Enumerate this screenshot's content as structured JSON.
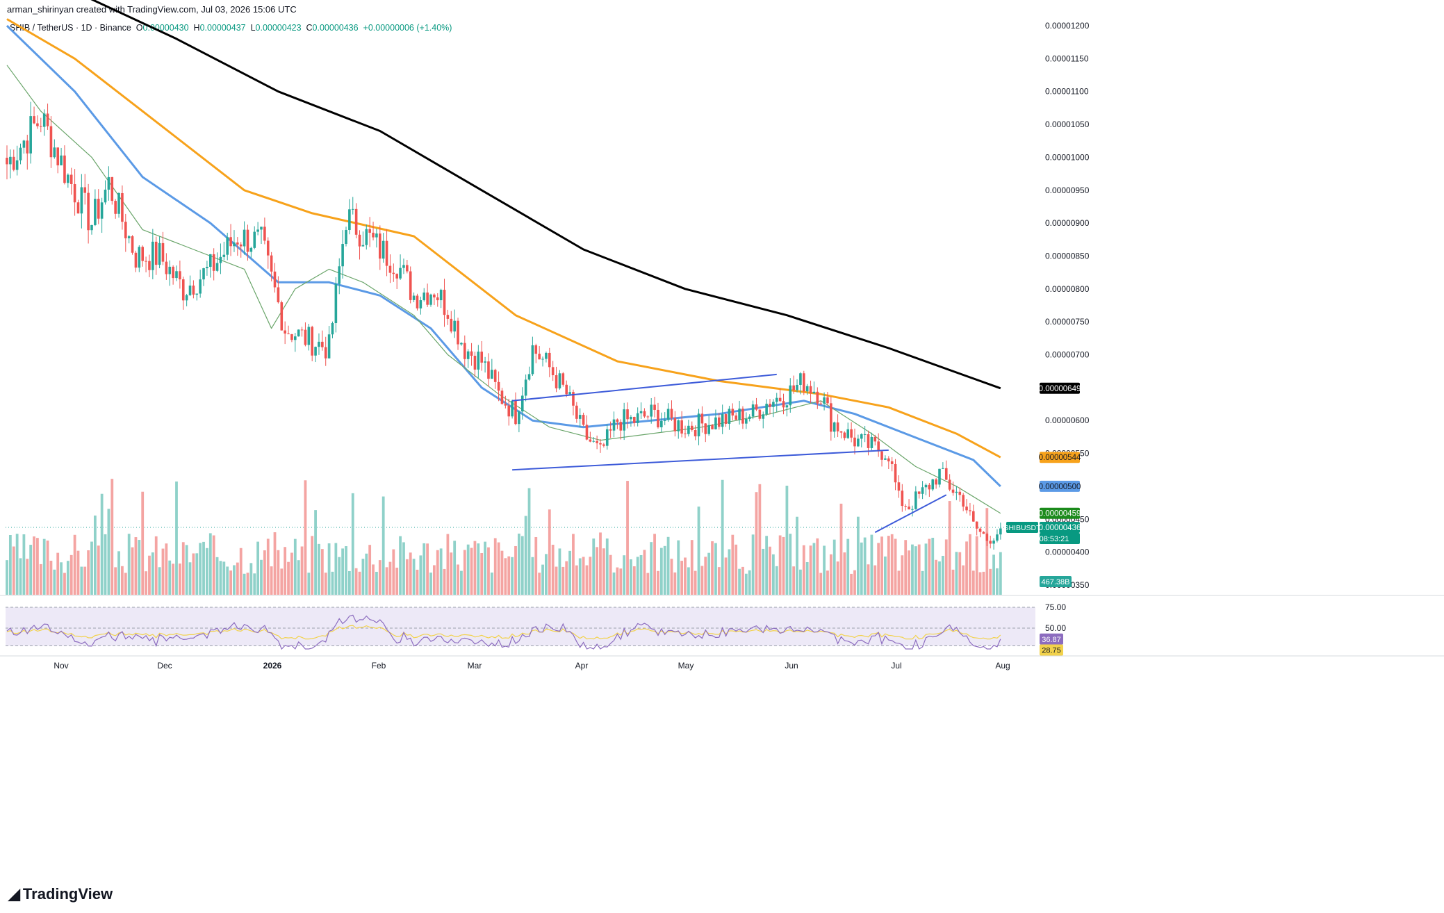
{
  "header": {
    "credit": "arman_shirinyan created with TradingView.com, Jul 03, 2026 15:06 UTC"
  },
  "legend": {
    "symbol": "SHIB / TetherUS · 1D · Binance",
    "o_label": "O",
    "o_value": "0.00000430",
    "h_label": "H",
    "h_value": "0.00000437",
    "l_label": "L",
    "l_value": "0.00000423",
    "c_label": "C",
    "c_value": "0.00000436",
    "change": "+0.00000006 (+1.40%)"
  },
  "brand": {
    "name": "TradingView"
  },
  "colors": {
    "up": "#26a69a",
    "down": "#ef5350",
    "vol_up": "#8fd1c9",
    "vol_down": "#f4a4a2",
    "ma_black": "#000000",
    "ma_orange": "#f7a21b",
    "ma_blue": "#5b9ae6",
    "ma_green": "#6aa56a",
    "trendline": "#3d5bd9",
    "rsi": "#8c6cbf",
    "rsi_ma": "#f2d24b",
    "rsi_band": "#ede9f7"
  },
  "chart_data": {
    "type": "candlestick",
    "symbol": "SHIBUSDT",
    "ylim": [
      3.9e-06,
      1.22e-05
    ],
    "y_ticks": [
      "0.00001200",
      "0.00001150",
      "0.00001100",
      "0.00001050",
      "0.00001000",
      "0.00000950",
      "0.00000900",
      "0.00000850",
      "0.00000800",
      "0.00000750",
      "0.00000700",
      "0.00000600",
      "0.00000550",
      "0.00000450",
      "0.00000400",
      "0.00000350"
    ],
    "x_ticks": [
      "Nov",
      "Dec",
      "2026",
      "Feb",
      "Mar",
      "Apr",
      "May",
      "Jun",
      "Jul",
      "Aug"
    ],
    "last_close": 4.36e-06,
    "price_tags": [
      {
        "label": "0.00000649",
        "value": 6.49e-06,
        "color": "#000000",
        "text_color": "#ffffff"
      },
      {
        "label": "0.00000544",
        "value": 5.44e-06,
        "color": "#f7a21b",
        "text_color": "#131722"
      },
      {
        "label": "0.00000500",
        "value": 5e-06,
        "color": "#5b9ae6",
        "text_color": "#131722"
      },
      {
        "label": "0.00000459",
        "value": 4.59e-06,
        "color": "#1b8a1b",
        "text_color": "#ffffff"
      },
      {
        "label": "0.00000436",
        "value": 4.36e-06,
        "color": "#089981",
        "text_color": "#ffffff"
      }
    ],
    "symbol_tag": "SHIBUSDT",
    "countdown": "08:53:21",
    "volume_tag": "467.38B",
    "keypoints": [
      [
        0,
        9.9e-06
      ],
      [
        10,
        1.06e-05
      ],
      [
        18,
        9.7e-06
      ],
      [
        25,
        9e-06
      ],
      [
        30,
        9.6e-06
      ],
      [
        38,
        8.5e-06
      ],
      [
        45,
        8.5e-06
      ],
      [
        52,
        8e-06
      ],
      [
        60,
        8.3e-06
      ],
      [
        68,
        8.8e-06
      ],
      [
        75,
        8.7e-06
      ],
      [
        82,
        7.4e-06
      ],
      [
        90,
        7.2e-06
      ],
      [
        95,
        7.1e-06
      ],
      [
        100,
        9.1e-06
      ],
      [
        106,
        8.8e-06
      ],
      [
        110,
        8.6e-06
      ],
      [
        115,
        8.4e-06
      ],
      [
        120,
        7.9e-06
      ],
      [
        126,
        8e-06
      ],
      [
        130,
        7.7e-06
      ],
      [
        135,
        7.1e-06
      ],
      [
        140,
        6.9e-06
      ],
      [
        145,
        6.4e-06
      ],
      [
        150,
        6.1e-06
      ],
      [
        155,
        7.1e-06
      ],
      [
        160,
        6.8e-06
      ],
      [
        165,
        6.4e-06
      ],
      [
        170,
        5.8e-06
      ],
      [
        175,
        5.5e-06
      ],
      [
        180,
        6e-06
      ],
      [
        185,
        6e-06
      ],
      [
        190,
        6.1e-06
      ],
      [
        200,
        5.9e-06
      ],
      [
        210,
        6e-06
      ],
      [
        220,
        6.1e-06
      ],
      [
        225,
        6.3e-06
      ],
      [
        230,
        6.4e-06
      ],
      [
        235,
        6.6e-06
      ],
      [
        240,
        6.4e-06
      ],
      [
        243,
        6e-06
      ],
      [
        250,
        5.7e-06
      ],
      [
        255,
        5.6e-06
      ],
      [
        260,
        5.5e-06
      ],
      [
        263,
        4.8e-06
      ],
      [
        266,
        4.7e-06
      ],
      [
        270,
        4.9e-06
      ],
      [
        275,
        5.2e-06
      ],
      [
        278,
        5e-06
      ],
      [
        282,
        4.8e-06
      ],
      [
        285,
        4.4e-06
      ],
      [
        289,
        4.2e-06
      ],
      [
        292,
        4.3e-06
      ],
      [
        293,
        4.36e-06
      ]
    ],
    "moving_averages": [
      {
        "name": "MA-black",
        "color": "#000000",
        "points": [
          [
            0,
            1.3e-05
          ],
          [
            50,
            1.18e-05
          ],
          [
            80,
            1.1e-05
          ],
          [
            110,
            1.04e-05
          ],
          [
            140,
            9.5e-06
          ],
          [
            170,
            8.6e-06
          ],
          [
            200,
            8e-06
          ],
          [
            230,
            7.6e-06
          ],
          [
            260,
            7.1e-06
          ],
          [
            293,
            6.49e-06
          ]
        ]
      },
      {
        "name": "MA-orange",
        "color": "#f7a21b",
        "points": [
          [
            0,
            1.21e-05
          ],
          [
            20,
            1.15e-05
          ],
          [
            40,
            1.07e-05
          ],
          [
            70,
            9.5e-06
          ],
          [
            90,
            9.15e-06
          ],
          [
            120,
            8.8e-06
          ],
          [
            150,
            7.6e-06
          ],
          [
            180,
            6.9e-06
          ],
          [
            210,
            6.6e-06
          ],
          [
            240,
            6.4e-06
          ],
          [
            260,
            6.2e-06
          ],
          [
            280,
            5.8e-06
          ],
          [
            293,
            5.44e-06
          ]
        ]
      },
      {
        "name": "MA-blue",
        "color": "#5b9ae6",
        "points": [
          [
            0,
            1.2e-05
          ],
          [
            20,
            1.1e-05
          ],
          [
            40,
            9.7e-06
          ],
          [
            60,
            9e-06
          ],
          [
            80,
            8.1e-06
          ],
          [
            95,
            8.1e-06
          ],
          [
            110,
            7.9e-06
          ],
          [
            125,
            7.4e-06
          ],
          [
            140,
            6.5e-06
          ],
          [
            155,
            6e-06
          ],
          [
            170,
            5.9e-06
          ],
          [
            190,
            6e-06
          ],
          [
            210,
            6.1e-06
          ],
          [
            235,
            6.3e-06
          ],
          [
            250,
            6.1e-06
          ],
          [
            270,
            5.7e-06
          ],
          [
            285,
            5.4e-06
          ],
          [
            293,
            5e-06
          ]
        ]
      },
      {
        "name": "MA-green",
        "color": "#6aa56a",
        "points": [
          [
            0,
            1.14e-05
          ],
          [
            10,
            1.07e-05
          ],
          [
            25,
            1e-05
          ],
          [
            40,
            8.9e-06
          ],
          [
            55,
            8.6e-06
          ],
          [
            70,
            8.3e-06
          ],
          [
            78,
            7.4e-06
          ],
          [
            85,
            8e-06
          ],
          [
            95,
            8.3e-06
          ],
          [
            105,
            8.1e-06
          ],
          [
            120,
            7.6e-06
          ],
          [
            130,
            7e-06
          ],
          [
            145,
            6.4e-06
          ],
          [
            160,
            5.9e-06
          ],
          [
            175,
            5.7e-06
          ],
          [
            190,
            5.8e-06
          ],
          [
            205,
            5.9e-06
          ],
          [
            225,
            6.1e-06
          ],
          [
            240,
            6.3e-06
          ],
          [
            255,
            5.8e-06
          ],
          [
            268,
            5.3e-06
          ],
          [
            280,
            5e-06
          ],
          [
            293,
            4.59e-06
          ]
        ]
      }
    ],
    "trendlines": [
      {
        "from": [
          149,
          6.3e-06
        ],
        "to": [
          227,
          6.7e-06
        ]
      },
      {
        "from": [
          149,
          5.25e-06
        ],
        "to": [
          260,
          5.55e-06
        ]
      },
      {
        "from": [
          256,
          4.3e-06
        ],
        "to": [
          277,
          4.87e-06
        ]
      }
    ],
    "volume": {
      "ylim": [
        0,
        600
      ]
    },
    "rsi": {
      "levels": [
        75,
        50,
        28.75
      ],
      "level_labels": [
        "75.00",
        "50.00"
      ],
      "value": 36.87,
      "value_label": "36.87",
      "ma_value": 28.75,
      "ma_label": "28.75",
      "ylim": [
        20,
        85
      ]
    }
  }
}
